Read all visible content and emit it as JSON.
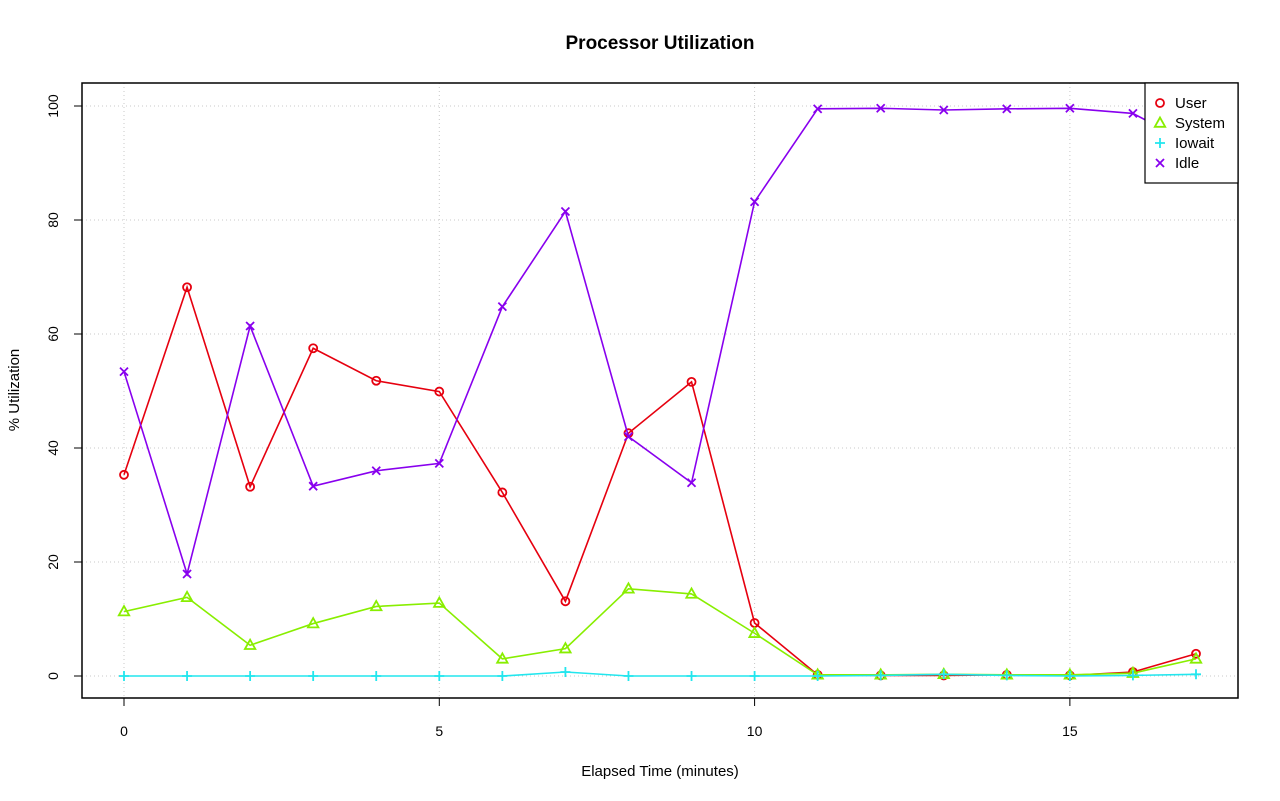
{
  "chart_data": {
    "type": "line",
    "title": "Processor Utilization",
    "xlabel": "Elapsed Time (minutes)",
    "ylabel": "% Utilization",
    "xlim": [
      0,
      17
    ],
    "ylim": [
      0,
      100
    ],
    "x_ticks": [
      0,
      5,
      10,
      15
    ],
    "y_ticks": [
      0,
      20,
      40,
      60,
      80,
      100
    ],
    "grid": true,
    "legend_position": "top-right",
    "x": [
      0,
      1,
      2,
      3,
      4,
      5,
      6,
      7,
      8,
      9,
      10,
      11,
      12,
      13,
      14,
      15,
      16,
      17
    ],
    "series": [
      {
        "name": "User",
        "color": "#e6000f",
        "marker": "circle",
        "values": [
          35.3,
          68.2,
          33.2,
          57.5,
          51.8,
          49.9,
          32.2,
          13.1,
          42.6,
          51.6,
          9.3,
          0.2,
          0.1,
          0.1,
          0.2,
          0.1,
          0.7,
          3.9
        ]
      },
      {
        "name": "System",
        "color": "#88ee00",
        "marker": "triangle",
        "values": [
          11.3,
          13.8,
          5.4,
          9.2,
          12.2,
          12.8,
          3.0,
          4.8,
          15.3,
          14.4,
          7.5,
          0.2,
          0.2,
          0.3,
          0.2,
          0.2,
          0.5,
          3.0
        ]
      },
      {
        "name": "Iowait",
        "color": "#22e6ee",
        "marker": "plus",
        "values": [
          0,
          0,
          0,
          0,
          0,
          0,
          0,
          0.7,
          0,
          0,
          0,
          0,
          0.1,
          0.3,
          0.1,
          0,
          0.1,
          0.3
        ]
      },
      {
        "name": "Idle",
        "color": "#8800ee",
        "marker": "x",
        "values": [
          53.4,
          17.9,
          61.4,
          33.3,
          36.0,
          37.3,
          64.8,
          81.5,
          42.0,
          33.9,
          83.2,
          99.5,
          99.6,
          99.3,
          99.5,
          99.6,
          98.7,
          92.9
        ]
      }
    ]
  }
}
